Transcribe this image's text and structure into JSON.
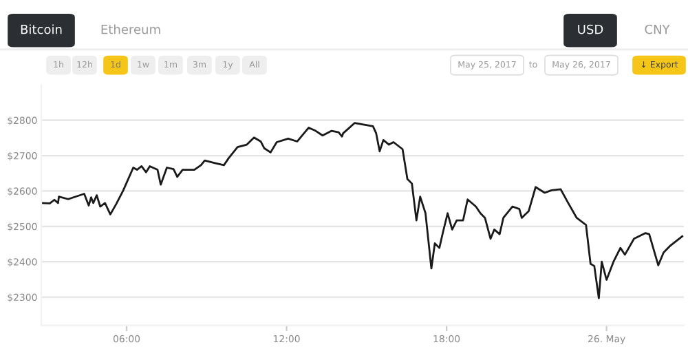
{
  "chart_data": {
    "type": "line",
    "annotations": [
      "Bitcoin",
      "Ethereum",
      "USD",
      "CNY",
      "1h",
      "12h",
      "1d",
      "1w",
      "1m",
      "3m",
      "1y",
      "All",
      "May 25, 2017",
      "to",
      "May 26, 2017",
      "↓ Export"
    ],
    "x": [
      2.81,
      3.12,
      3.29,
      3.43,
      3.46,
      3.81,
      4.41,
      4.58,
      4.67,
      4.75,
      4.88,
      5.01,
      5.19,
      5.39,
      5.61,
      5.87,
      6.25,
      6.39,
      6.56,
      6.73,
      6.87,
      7.16,
      7.28,
      7.51,
      7.76,
      7.9,
      8.1,
      8.54,
      8.79,
      8.93,
      9.31,
      9.65,
      9.82,
      10.16,
      10.51,
      10.78,
      11.03,
      11.16,
      11.4,
      11.63,
      12.06,
      12.4,
      12.83,
      13.09,
      13.35,
      13.69,
      13.95,
      14.08,
      14.12,
      14.55,
      15.24,
      15.36,
      15.49,
      15.63,
      15.84,
      16.01,
      16.35,
      16.53,
      16.7,
      16.87,
      17.01,
      17.21,
      17.43,
      17.56,
      17.73,
      17.87,
      18.04,
      18.21,
      18.38,
      18.62,
      18.79,
      19.1,
      19.27,
      19.44,
      19.65,
      19.79,
      19.99,
      20.13,
      20.47,
      20.73,
      20.82,
      21.08,
      21.34,
      21.68,
      21.94,
      22.28,
      22.54,
      22.88,
      23.23,
      23.4,
      23.54,
      23.71,
      23.82,
      24.0,
      24.26,
      24.52,
      24.69,
      25.03,
      25.46,
      25.6,
      25.94,
      26.14,
      26.4,
      26.84
    ],
    "series": [
      {
        "color": "#1a1a1a",
        "values": [
          2566,
          2565,
          2575,
          2566,
          2584,
          2577,
          2592,
          2559,
          2582,
          2566,
          2588,
          2556,
          2566,
          2534,
          2563,
          2601,
          2666,
          2660,
          2670,
          2653,
          2670,
          2660,
          2618,
          2666,
          2662,
          2640,
          2660,
          2660,
          2673,
          2686,
          2679,
          2673,
          2692,
          2724,
          2731,
          2751,
          2740,
          2721,
          2709,
          2738,
          2748,
          2740,
          2779,
          2770,
          2757,
          2770,
          2766,
          2754,
          2763,
          2792,
          2783,
          2763,
          2712,
          2744,
          2731,
          2738,
          2718,
          2634,
          2621,
          2517,
          2584,
          2537,
          2381,
          2452,
          2439,
          2485,
          2537,
          2491,
          2517,
          2517,
          2576,
          2556,
          2537,
          2524,
          2465,
          2491,
          2478,
          2524,
          2556,
          2549,
          2524,
          2543,
          2611,
          2595,
          2602,
          2605,
          2569,
          2524,
          2504,
          2394,
          2388,
          2297,
          2400,
          2349,
          2400,
          2439,
          2420,
          2465,
          2481,
          2478,
          2390,
          2426,
          2446,
          2472
        ]
      }
    ],
    "xlim": [
      2.8,
      26.9
    ],
    "xticks": [
      {
        "value": 6,
        "label": "06:00"
      },
      {
        "value": 12,
        "label": "12:00"
      },
      {
        "value": 18,
        "label": "18:00"
      },
      {
        "value": 24,
        "label": "26. May"
      }
    ],
    "ylim": [
      2220,
      2900
    ],
    "yticks": [
      {
        "value": 2300,
        "label": "$2300"
      },
      {
        "value": 2400,
        "label": "$2400"
      },
      {
        "value": 2500,
        "label": "$2500"
      },
      {
        "value": 2600,
        "label": "$2600"
      },
      {
        "value": 2700,
        "label": "$2700"
      },
      {
        "value": 2800,
        "label": "$2800"
      }
    ],
    "grid": "y",
    "legend": false
  }
}
